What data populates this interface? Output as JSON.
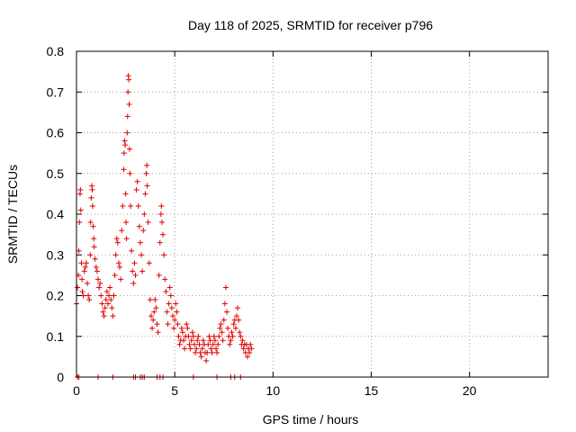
{
  "chart_data": {
    "type": "scatter",
    "title": "Day 118 of 2025, SRMTID for receiver p796",
    "xlabel": "GPS time / hours",
    "ylabel": "SRMTID / TECUs",
    "xlim": [
      0,
      24
    ],
    "ylim": [
      0,
      0.8
    ],
    "xticks": [
      0,
      5,
      10,
      15,
      20
    ],
    "xtick_labels": [
      "0",
      "5",
      "10",
      "15",
      "20"
    ],
    "yticks": [
      0,
      0.1,
      0.2,
      0.3,
      0.4,
      0.5,
      0.6,
      0.7,
      0.8
    ],
    "ytick_labels": [
      "0",
      "0.1",
      "0.2",
      "0.3",
      "0.4",
      "0.5",
      "0.6",
      "0.7",
      "0.8"
    ],
    "grid": true,
    "marker": "+",
    "marker_color": "#e00000",
    "series": [
      {
        "name": "SRMTID",
        "points": [
          [
            0.0,
            0.18
          ],
          [
            0.05,
            0.22
          ],
          [
            0.1,
            0.25
          ],
          [
            0.12,
            0.31
          ],
          [
            0.15,
            0.38
          ],
          [
            0.18,
            0.45
          ],
          [
            0.2,
            0.46
          ],
          [
            0.22,
            0.41
          ],
          [
            0.25,
            0.28
          ],
          [
            0.28,
            0.24
          ],
          [
            0.3,
            0.21
          ],
          [
            0.35,
            0.2
          ],
          [
            0.4,
            0.26
          ],
          [
            0.45,
            0.27
          ],
          [
            0.5,
            0.28
          ],
          [
            0.55,
            0.23
          ],
          [
            0.6,
            0.2
          ],
          [
            0.65,
            0.19
          ],
          [
            0.7,
            0.3
          ],
          [
            0.72,
            0.38
          ],
          [
            0.75,
            0.44
          ],
          [
            0.78,
            0.47
          ],
          [
            0.8,
            0.46
          ],
          [
            0.82,
            0.42
          ],
          [
            0.85,
            0.37
          ],
          [
            0.88,
            0.34
          ],
          [
            0.9,
            0.32
          ],
          [
            0.95,
            0.29
          ],
          [
            1.0,
            0.27
          ],
          [
            1.05,
            0.26
          ],
          [
            1.1,
            0.24
          ],
          [
            1.15,
            0.22
          ],
          [
            1.2,
            0.23
          ],
          [
            1.25,
            0.2
          ],
          [
            1.3,
            0.18
          ],
          [
            1.35,
            0.16
          ],
          [
            1.4,
            0.15
          ],
          [
            1.45,
            0.17
          ],
          [
            1.5,
            0.19
          ],
          [
            1.55,
            0.21
          ],
          [
            1.6,
            0.18
          ],
          [
            1.65,
            0.2
          ],
          [
            1.7,
            0.22
          ],
          [
            1.75,
            0.19
          ],
          [
            1.8,
            0.17
          ],
          [
            1.85,
            0.15
          ],
          [
            1.9,
            0.2
          ],
          [
            1.95,
            0.25
          ],
          [
            2.0,
            0.3
          ],
          [
            2.05,
            0.34
          ],
          [
            2.1,
            0.33
          ],
          [
            2.15,
            0.28
          ],
          [
            2.2,
            0.27
          ],
          [
            2.25,
            0.24
          ],
          [
            2.3,
            0.36
          ],
          [
            2.35,
            0.42
          ],
          [
            2.4,
            0.51
          ],
          [
            2.42,
            0.55
          ],
          [
            2.45,
            0.58
          ],
          [
            2.48,
            0.57
          ],
          [
            2.5,
            0.45
          ],
          [
            2.52,
            0.38
          ],
          [
            2.55,
            0.34
          ],
          [
            2.58,
            0.6
          ],
          [
            2.6,
            0.64
          ],
          [
            2.62,
            0.7
          ],
          [
            2.64,
            0.74
          ],
          [
            2.66,
            0.73
          ],
          [
            2.68,
            0.67
          ],
          [
            2.7,
            0.56
          ],
          [
            2.72,
            0.5
          ],
          [
            2.75,
            0.42
          ],
          [
            2.8,
            0.31
          ],
          [
            2.85,
            0.26
          ],
          [
            2.9,
            0.23
          ],
          [
            2.95,
            0.28
          ],
          [
            3.0,
            0.25
          ],
          [
            3.05,
            0.46
          ],
          [
            3.1,
            0.48
          ],
          [
            3.15,
            0.42
          ],
          [
            3.2,
            0.37
          ],
          [
            3.25,
            0.33
          ],
          [
            3.3,
            0.3
          ],
          [
            3.35,
            0.26
          ],
          [
            3.4,
            0.36
          ],
          [
            3.45,
            0.4
          ],
          [
            3.5,
            0.45
          ],
          [
            3.55,
            0.5
          ],
          [
            3.58,
            0.52
          ],
          [
            3.6,
            0.47
          ],
          [
            3.65,
            0.38
          ],
          [
            3.7,
            0.28
          ],
          [
            3.75,
            0.19
          ],
          [
            3.8,
            0.15
          ],
          [
            3.85,
            0.12
          ],
          [
            3.9,
            0.14
          ],
          [
            3.95,
            0.16
          ],
          [
            4.0,
            0.19
          ],
          [
            4.05,
            0.17
          ],
          [
            4.1,
            0.13
          ],
          [
            4.15,
            0.11
          ],
          [
            4.2,
            0.25
          ],
          [
            4.25,
            0.33
          ],
          [
            4.3,
            0.4
          ],
          [
            4.32,
            0.42
          ],
          [
            4.35,
            0.38
          ],
          [
            4.4,
            0.35
          ],
          [
            4.45,
            0.3
          ],
          [
            4.5,
            0.24
          ],
          [
            4.55,
            0.21
          ],
          [
            4.6,
            0.16
          ],
          [
            4.65,
            0.13
          ],
          [
            4.7,
            0.18
          ],
          [
            4.75,
            0.22
          ],
          [
            4.8,
            0.2
          ],
          [
            4.85,
            0.17
          ],
          [
            4.9,
            0.15
          ],
          [
            4.95,
            0.12
          ],
          [
            5.0,
            0.14
          ],
          [
            5.05,
            0.18
          ],
          [
            5.1,
            0.16
          ],
          [
            5.15,
            0.13
          ],
          [
            5.2,
            0.1
          ],
          [
            5.25,
            0.08
          ],
          [
            5.3,
            0.09
          ],
          [
            5.35,
            0.12
          ],
          [
            5.4,
            0.11
          ],
          [
            5.45,
            0.09
          ],
          [
            5.5,
            0.07
          ],
          [
            5.55,
            0.1
          ],
          [
            5.6,
            0.13
          ],
          [
            5.65,
            0.12
          ],
          [
            5.7,
            0.1
          ],
          [
            5.75,
            0.08
          ],
          [
            5.8,
            0.07
          ],
          [
            5.85,
            0.09
          ],
          [
            5.9,
            0.11
          ],
          [
            5.95,
            0.1
          ],
          [
            6.0,
            0.08
          ],
          [
            6.05,
            0.06
          ],
          [
            6.1,
            0.07
          ],
          [
            6.15,
            0.09
          ],
          [
            6.2,
            0.1
          ],
          [
            6.25,
            0.08
          ],
          [
            6.3,
            0.06
          ],
          [
            6.35,
            0.05
          ],
          [
            6.4,
            0.07
          ],
          [
            6.45,
            0.09
          ],
          [
            6.5,
            0.08
          ],
          [
            6.55,
            0.06
          ],
          [
            6.6,
            0.04
          ],
          [
            6.65,
            0.06
          ],
          [
            6.7,
            0.08
          ],
          [
            6.75,
            0.1
          ],
          [
            6.8,
            0.09
          ],
          [
            6.85,
            0.07
          ],
          [
            6.9,
            0.06
          ],
          [
            6.95,
            0.08
          ],
          [
            7.0,
            0.1
          ],
          [
            7.05,
            0.09
          ],
          [
            7.1,
            0.07
          ],
          [
            7.15,
            0.06
          ],
          [
            7.2,
            0.08
          ],
          [
            7.25,
            0.1
          ],
          [
            7.3,
            0.12
          ],
          [
            7.35,
            0.13
          ],
          [
            7.4,
            0.11
          ],
          [
            7.45,
            0.09
          ],
          [
            7.5,
            0.14
          ],
          [
            7.55,
            0.18
          ],
          [
            7.6,
            0.22
          ],
          [
            7.65,
            0.16
          ],
          [
            7.7,
            0.12
          ],
          [
            7.75,
            0.1
          ],
          [
            7.8,
            0.08
          ],
          [
            7.85,
            0.09
          ],
          [
            7.9,
            0.11
          ],
          [
            7.95,
            0.1
          ],
          [
            8.0,
            0.13
          ],
          [
            8.05,
            0.14
          ],
          [
            8.1,
            0.12
          ],
          [
            8.15,
            0.15
          ],
          [
            8.2,
            0.17
          ],
          [
            8.25,
            0.14
          ],
          [
            8.3,
            0.11
          ],
          [
            8.35,
            0.1
          ],
          [
            8.4,
            0.08
          ],
          [
            8.45,
            0.09
          ],
          [
            8.5,
            0.07
          ],
          [
            8.55,
            0.08
          ],
          [
            8.6,
            0.06
          ],
          [
            8.65,
            0.08
          ],
          [
            8.7,
            0.05
          ],
          [
            8.75,
            0.07
          ],
          [
            8.8,
            0.06
          ],
          [
            8.85,
            0.08
          ],
          [
            8.9,
            0.07
          ],
          [
            0.05,
            0.0
          ],
          [
            0.12,
            0.0
          ],
          [
            1.1,
            0.0
          ],
          [
            1.85,
            0.0
          ],
          [
            2.9,
            0.0
          ],
          [
            3.0,
            0.0
          ],
          [
            3.25,
            0.0
          ],
          [
            3.35,
            0.0
          ],
          [
            3.45,
            0.0
          ],
          [
            4.1,
            0.0
          ],
          [
            4.25,
            0.0
          ],
          [
            4.4,
            0.0
          ],
          [
            5.95,
            0.0
          ],
          [
            7.15,
            0.0
          ],
          [
            7.85,
            0.0
          ],
          [
            8.05,
            0.0
          ],
          [
            8.35,
            0.0
          ]
        ]
      }
    ]
  }
}
